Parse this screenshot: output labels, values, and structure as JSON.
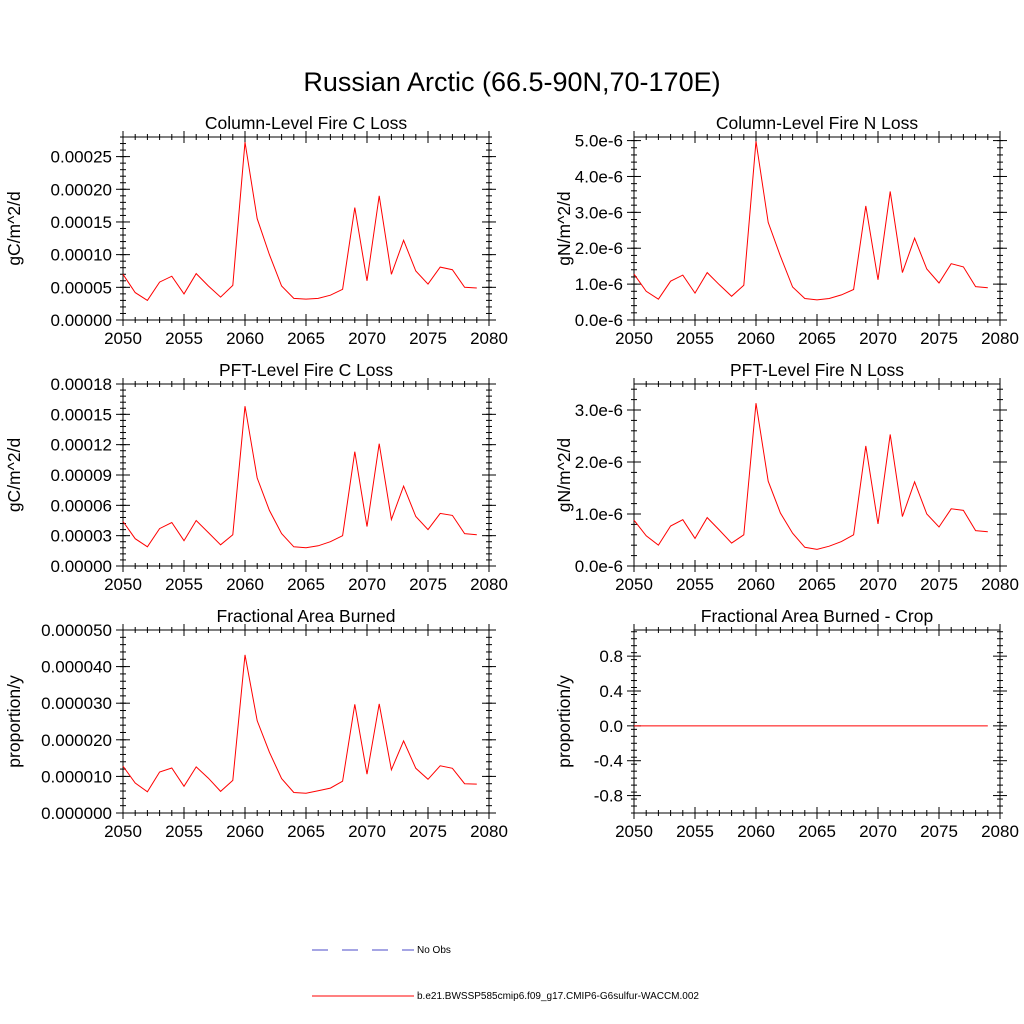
{
  "figure_title": "Russian Arctic (66.5-90N,70-170E)",
  "colors": {
    "model": "#ff0000",
    "obs": "#4b4bc8",
    "axis": "#000000"
  },
  "legend": {
    "obs_label": "No Obs",
    "model_label": "b.e21.BWSSP585cmip6.f09_g17.CMIP6-G6sulfur-WACCM.002"
  },
  "chart_data": [
    {
      "type": "line",
      "title": "Column-Level Fire C Loss",
      "ylabel": "gC/m^2/d",
      "xlabel": "",
      "xlim": [
        2050,
        2080
      ],
      "ylim": [
        0,
        0.00028
      ],
      "xticks": [
        "2050",
        "2055",
        "2060",
        "2065",
        "2070",
        "2075",
        "2080"
      ],
      "yticks": [
        {
          "value": 0,
          "label": "0.00000"
        },
        {
          "value": 5e-05,
          "label": "0.00005"
        },
        {
          "value": 0.0001,
          "label": "0.00010"
        },
        {
          "value": 0.00015,
          "label": "0.00015"
        },
        {
          "value": 0.0002,
          "label": "0.00020"
        },
        {
          "value": 0.00025,
          "label": "0.00025"
        }
      ],
      "x": [
        2050,
        2051,
        2052,
        2053,
        2054,
        2055,
        2056,
        2057,
        2058,
        2059,
        2060,
        2061,
        2062,
        2063,
        2064,
        2065,
        2066,
        2067,
        2068,
        2069,
        2070,
        2071,
        2072,
        2073,
        2074,
        2075,
        2076,
        2077,
        2078,
        2079
      ],
      "series": [
        {
          "values": [
            7e-05,
            4.2e-05,
            3e-05,
            5.8e-05,
            6.7e-05,
            4e-05,
            7.1e-05,
            5.2e-05,
            3.5e-05,
            5.3e-05,
            0.000272,
            0.000155,
            0.0001,
            5.2e-05,
            3.3e-05,
            3.2e-05,
            3.3e-05,
            3.8e-05,
            4.7e-05,
            0.000172,
            6e-05,
            0.00019,
            7e-05,
            0.000122,
            7.5e-05,
            5.5e-05,
            8.1e-05,
            7.7e-05,
            5e-05,
            4.9e-05
          ]
        }
      ]
    },
    {
      "type": "line",
      "title": "Column-Level Fire N Loss",
      "ylabel": "gN/m^2/d",
      "xlabel": "",
      "xlim": [
        2050,
        2080
      ],
      "ylim": [
        0,
        5.1e-06
      ],
      "xticks": [
        "2050",
        "2055",
        "2060",
        "2065",
        "2070",
        "2075",
        "2080"
      ],
      "yticks": [
        {
          "value": 0,
          "label": "0.0e-6"
        },
        {
          "value": 1e-06,
          "label": "1.0e-6"
        },
        {
          "value": 2e-06,
          "label": "2.0e-6"
        },
        {
          "value": 3e-06,
          "label": "3.0e-6"
        },
        {
          "value": 4e-06,
          "label": "4.0e-6"
        },
        {
          "value": 5e-06,
          "label": "5.0e-6"
        }
      ],
      "x": [
        2050,
        2051,
        2052,
        2053,
        2054,
        2055,
        2056,
        2057,
        2058,
        2059,
        2060,
        2061,
        2062,
        2063,
        2064,
        2065,
        2066,
        2067,
        2068,
        2069,
        2070,
        2071,
        2072,
        2073,
        2074,
        2075,
        2076,
        2077,
        2078,
        2079
      ],
      "series": [
        {
          "values": [
            1.28e-06,
            8e-07,
            5.8e-07,
            1.08e-06,
            1.25e-06,
            7.5e-07,
            1.32e-06,
            9.8e-07,
            6.6e-07,
            9.7e-07,
            4.98e-06,
            2.72e-06,
            1.78e-06,
            9.2e-07,
            6e-07,
            5.6e-07,
            6e-07,
            7e-07,
            8.5e-07,
            3.18e-06,
            1.12e-06,
            3.58e-06,
            1.32e-06,
            2.28e-06,
            1.42e-06,
            1.03e-06,
            1.57e-06,
            1.48e-06,
            9.3e-07,
            9e-07
          ]
        }
      ]
    },
    {
      "type": "line",
      "title": "PFT-Level Fire C Loss",
      "ylabel": "gC/m^2/d",
      "xlabel": "",
      "xlim": [
        2050,
        2080
      ],
      "ylim": [
        0,
        0.00018
      ],
      "xticks": [
        "2050",
        "2055",
        "2060",
        "2065",
        "2070",
        "2075",
        "2080"
      ],
      "yticks": [
        {
          "value": 0,
          "label": "0.00000"
        },
        {
          "value": 3e-05,
          "label": "0.00003"
        },
        {
          "value": 6e-05,
          "label": "0.00006"
        },
        {
          "value": 9e-05,
          "label": "0.00009"
        },
        {
          "value": 0.00012,
          "label": "0.00012"
        },
        {
          "value": 0.00015,
          "label": "0.00015"
        },
        {
          "value": 0.00018,
          "label": "0.00018"
        }
      ],
      "x": [
        2050,
        2051,
        2052,
        2053,
        2054,
        2055,
        2056,
        2057,
        2058,
        2059,
        2060,
        2061,
        2062,
        2063,
        2064,
        2065,
        2066,
        2067,
        2068,
        2069,
        2070,
        2071,
        2072,
        2073,
        2074,
        2075,
        2076,
        2077,
        2078,
        2079
      ],
      "series": [
        {
          "values": [
            4.4e-05,
            2.7e-05,
            1.9e-05,
            3.7e-05,
            4.3e-05,
            2.5e-05,
            4.5e-05,
            3.3e-05,
            2.1e-05,
            3.1e-05,
            0.000158,
            8.7e-05,
            5.5e-05,
            3.2e-05,
            1.9e-05,
            1.8e-05,
            2e-05,
            2.4e-05,
            3e-05,
            0.000113,
            3.9e-05,
            0.000121,
            4.6e-05,
            7.9e-05,
            4.9e-05,
            3.6e-05,
            5.2e-05,
            5e-05,
            3.2e-05,
            3.1e-05
          ]
        }
      ]
    },
    {
      "type": "line",
      "title": "PFT-Level Fire N Loss",
      "ylabel": "gN/m^2/d",
      "xlabel": "",
      "xlim": [
        2050,
        2080
      ],
      "ylim": [
        0,
        3.5e-06
      ],
      "xticks": [
        "2050",
        "2055",
        "2060",
        "2065",
        "2070",
        "2075",
        "2080"
      ],
      "yticks": [
        {
          "value": 0,
          "label": "0.0e-6"
        },
        {
          "value": 1e-06,
          "label": "1.0e-6"
        },
        {
          "value": 2e-06,
          "label": "2.0e-6"
        },
        {
          "value": 3e-06,
          "label": "3.0e-6"
        }
      ],
      "x": [
        2050,
        2051,
        2052,
        2053,
        2054,
        2055,
        2056,
        2057,
        2058,
        2059,
        2060,
        2061,
        2062,
        2063,
        2064,
        2065,
        2066,
        2067,
        2068,
        2069,
        2070,
        2071,
        2072,
        2073,
        2074,
        2075,
        2076,
        2077,
        2078,
        2079
      ],
      "series": [
        {
          "values": [
            8.8e-07,
            5.8e-07,
            4e-07,
            7.7e-07,
            8.9e-07,
            5.3e-07,
            9.3e-07,
            6.9e-07,
            4.4e-07,
            6e-07,
            3.13e-06,
            1.63e-06,
            1.02e-06,
            6.3e-07,
            3.6e-07,
            3.2e-07,
            3.8e-07,
            4.7e-07,
            6e-07,
            2.31e-06,
            8.1e-07,
            2.53e-06,
            9.5e-07,
            1.62e-06,
            1e-06,
            7.5e-07,
            1.1e-06,
            1.07e-06,
            6.8e-07,
            6.6e-07
          ]
        }
      ]
    },
    {
      "type": "line",
      "title": "Fractional Area Burned",
      "ylabel": "proportion/y",
      "xlabel": "",
      "xlim": [
        2050,
        2080
      ],
      "ylim": [
        0,
        5e-05
      ],
      "xticks": [
        "2050",
        "2055",
        "2060",
        "2065",
        "2070",
        "2075",
        "2080"
      ],
      "yticks": [
        {
          "value": 0,
          "label": "0.000000"
        },
        {
          "value": 1e-05,
          "label": "0.000010"
        },
        {
          "value": 2e-05,
          "label": "0.000020"
        },
        {
          "value": 3e-05,
          "label": "0.000030"
        },
        {
          "value": 4e-05,
          "label": "0.000040"
        },
        {
          "value": 5e-05,
          "label": "0.000050"
        }
      ],
      "x": [
        2050,
        2051,
        2052,
        2053,
        2054,
        2055,
        2056,
        2057,
        2058,
        2059,
        2060,
        2061,
        2062,
        2063,
        2064,
        2065,
        2066,
        2067,
        2068,
        2069,
        2070,
        2071,
        2072,
        2073,
        2074,
        2075,
        2076,
        2077,
        2078,
        2079
      ],
      "series": [
        {
          "values": [
            1.28e-05,
            8.2e-06,
            5.8e-06,
            1.12e-05,
            1.23e-05,
            7.3e-06,
            1.26e-05,
            9.5e-06,
            5.9e-06,
            8.9e-06,
            4.32e-05,
            2.52e-05,
            1.66e-05,
            9.4e-06,
            5.6e-06,
            5.4e-06,
            6.1e-06,
            6.8e-06,
            8.7e-06,
            2.97e-05,
            1.06e-05,
            2.98e-05,
            1.18e-05,
            1.97e-05,
            1.22e-05,
            9.2e-06,
            1.29e-05,
            1.22e-05,
            8e-06,
            7.9e-06
          ]
        }
      ]
    },
    {
      "type": "line",
      "title": "Fractional Area Burned - Crop",
      "ylabel": "proportion/y",
      "xlabel": "",
      "xlim": [
        2050,
        2080
      ],
      "ylim": [
        -1,
        1.1
      ],
      "xticks": [
        "2050",
        "2055",
        "2060",
        "2065",
        "2070",
        "2075",
        "2080"
      ],
      "yticks": [
        {
          "value": -0.8,
          "label": "-0.8"
        },
        {
          "value": -0.4,
          "label": "-0.4"
        },
        {
          "value": 0,
          "label": "0.0"
        },
        {
          "value": 0.4,
          "label": "0.4"
        },
        {
          "value": 0.8,
          "label": "0.8"
        }
      ],
      "x": [
        2050,
        2051,
        2052,
        2053,
        2054,
        2055,
        2056,
        2057,
        2058,
        2059,
        2060,
        2061,
        2062,
        2063,
        2064,
        2065,
        2066,
        2067,
        2068,
        2069,
        2070,
        2071,
        2072,
        2073,
        2074,
        2075,
        2076,
        2077,
        2078,
        2079
      ],
      "series": [
        {
          "values": [
            0,
            0,
            0,
            0,
            0,
            0,
            0,
            0,
            0,
            0,
            0,
            0,
            0,
            0,
            0,
            0,
            0,
            0,
            0,
            0,
            0,
            0,
            0,
            0,
            0,
            0,
            0,
            0,
            0,
            0
          ]
        }
      ]
    }
  ]
}
